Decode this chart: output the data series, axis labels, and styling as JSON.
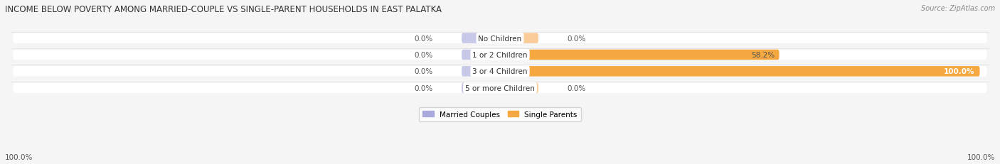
{
  "title": "INCOME BELOW POVERTY AMONG MARRIED-COUPLE VS SINGLE-PARENT HOUSEHOLDS IN EAST PALATKA",
  "source": "Source: ZipAtlas.com",
  "categories": [
    "No Children",
    "1 or 2 Children",
    "3 or 4 Children",
    "5 or more Children"
  ],
  "married_couples": [
    0.0,
    0.0,
    0.0,
    0.0
  ],
  "single_parents": [
    0.0,
    58.2,
    100.0,
    0.0
  ],
  "married_color": "#aaaadd",
  "single_color": "#f5a840",
  "single_color_light": "#f9cc99",
  "married_color_light": "#c8c8e8",
  "bg_bar_color": "#f0f0f0",
  "left_label": "100.0%",
  "right_label": "100.0%",
  "title_fontsize": 8.5,
  "source_fontsize": 7,
  "label_fontsize": 7.5,
  "legend_fontsize": 7.5,
  "figsize": [
    14.06,
    2.32
  ],
  "dpi": 100,
  "max_value": 100.0,
  "bar_height": 0.62,
  "background_color": "#f5f5f5"
}
